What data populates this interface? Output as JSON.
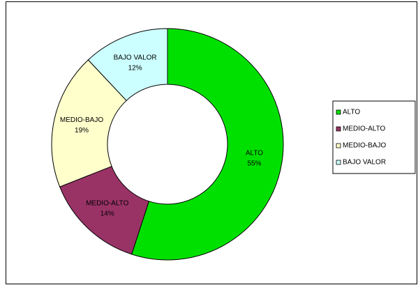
{
  "chart_data": {
    "type": "donut",
    "categories": [
      "ALTO",
      "MEDIO-ALTO",
      "MEDIO-BAJO",
      "BAJO VALOR"
    ],
    "values": [
      55,
      14,
      19,
      12
    ],
    "value_labels": [
      "55%",
      "14%",
      "19%",
      "12%"
    ],
    "colors": [
      "#00e000",
      "#993366",
      "#ffffcc",
      "#ccffff"
    ],
    "legend": "right"
  }
}
